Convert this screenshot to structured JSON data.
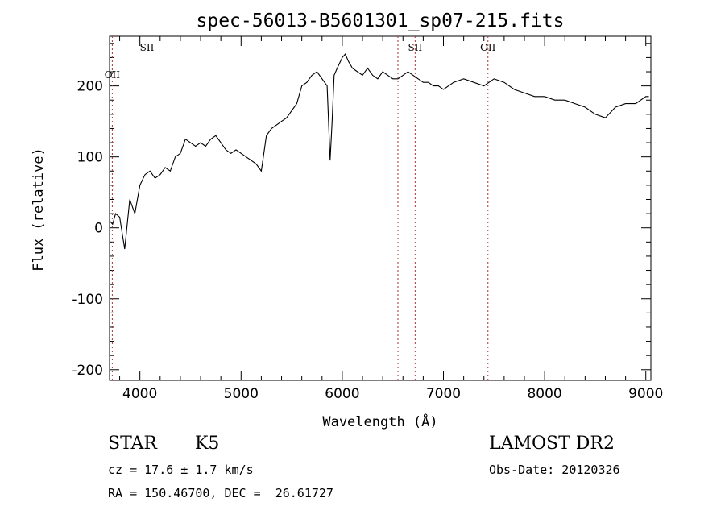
{
  "chart_data": {
    "type": "line",
    "title": "spec-56013-B5601301_sp07-215.fits",
    "xlabel": "Wavelength (Å)",
    "ylabel": "Flux (relative)",
    "xlim": [
      3700,
      9050
    ],
    "ylim": [
      -215,
      270
    ],
    "x_ticks": [
      4000,
      5000,
      6000,
      7000,
      8000,
      9000
    ],
    "y_ticks": [
      -200,
      -100,
      0,
      100,
      200
    ],
    "grid": false,
    "series": [
      {
        "color": "#000000",
        "x": [
          3700,
          3730,
          3760,
          3800,
          3850,
          3900,
          3950,
          4000,
          4050,
          4100,
          4150,
          4200,
          4250,
          4300,
          4350,
          4400,
          4450,
          4500,
          4550,
          4600,
          4650,
          4700,
          4750,
          4800,
          4850,
          4900,
          4950,
          5000,
          5050,
          5100,
          5150,
          5200,
          5250,
          5300,
          5350,
          5400,
          5450,
          5500,
          5550,
          5600,
          5650,
          5700,
          5750,
          5800,
          5850,
          5880,
          5900,
          5920,
          5950,
          6000,
          6030,
          6060,
          6100,
          6150,
          6200,
          6250,
          6300,
          6350,
          6400,
          6450,
          6500,
          6550,
          6600,
          6650,
          6700,
          6750,
          6800,
          6850,
          6900,
          6950,
          7000,
          7100,
          7200,
          7300,
          7400,
          7500,
          7600,
          7700,
          7800,
          7900,
          8000,
          8100,
          8200,
          8300,
          8400,
          8500,
          8600,
          8700,
          8800,
          8900,
          9000,
          9030
        ],
        "y": [
          10,
          5,
          20,
          15,
          -30,
          40,
          20,
          60,
          75,
          80,
          70,
          75,
          85,
          80,
          100,
          105,
          125,
          120,
          115,
          120,
          115,
          125,
          130,
          120,
          110,
          105,
          110,
          105,
          100,
          95,
          90,
          80,
          130,
          140,
          145,
          150,
          155,
          165,
          175,
          200,
          205,
          215,
          220,
          210,
          200,
          95,
          150,
          215,
          225,
          240,
          245,
          235,
          225,
          220,
          215,
          225,
          215,
          210,
          220,
          215,
          210,
          210,
          215,
          220,
          215,
          210,
          205,
          205,
          200,
          200,
          195,
          205,
          210,
          205,
          200,
          210,
          205,
          195,
          190,
          185,
          185,
          180,
          180,
          175,
          170,
          160,
          155,
          170,
          175,
          175,
          185,
          185
        ]
      }
    ],
    "line_markers": [
      {
        "label": "OII",
        "x": 3727
      },
      {
        "label": "SII",
        "x": 4070
      },
      {
        "label": "",
        "x": 6550
      },
      {
        "label": "SII",
        "x": 6720
      },
      {
        "label": "OII",
        "x": 7440
      }
    ]
  },
  "info": {
    "class_label": "STAR",
    "subclass_label": "K5",
    "survey": "LAMOST DR2",
    "cz": "cz = 17.6 ± 1.7 km/s",
    "obs_date": "Obs-Date: 20120326",
    "coords": "RA = 150.46700, DEC =  26.61727"
  }
}
